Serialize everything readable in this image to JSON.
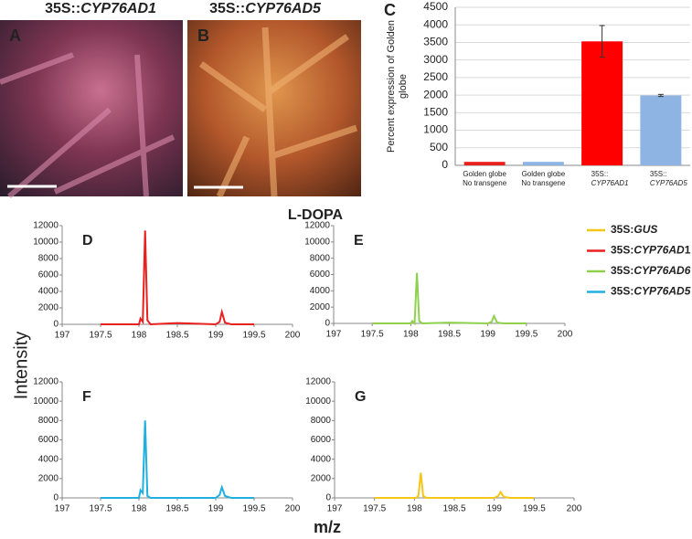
{
  "photos": [
    {
      "label": "A",
      "title": {
        "prefix": "35S::",
        "gene": "CYP76AD1"
      }
    },
    {
      "label": "B",
      "title": {
        "prefix": "35S::",
        "gene": "CYP76AD5"
      }
    }
  ],
  "lines_title": "L-DOPA",
  "y_axis_label": "Intensity",
  "x_axis_label": "m/z",
  "legend": [
    {
      "prefix": "35S:",
      "gene": "GUS",
      "suffix": "",
      "color": "#f5c518"
    },
    {
      "prefix": "35S:",
      "gene": "CYP76AD",
      "suffix": "1",
      "color": "#e8211f"
    },
    {
      "prefix": "35S:",
      "gene": "CYP76AD6",
      "suffix": "",
      "color": "#8fd14f"
    },
    {
      "prefix": "35S:",
      "gene": "CYP76AD5",
      "suffix": "",
      "color": "#1fb0e0"
    }
  ],
  "chart_data": [
    {
      "type": "bar",
      "panel": "C",
      "ylabel": [
        "Percent expression of Golden",
        "globe"
      ],
      "categories": [
        [
          "Golden globe",
          "No transgene"
        ],
        [
          "Golden globe",
          "No transgene"
        ],
        [
          "35S::",
          "CYP76AD1"
        ],
        [
          "35S::",
          "CYP76AD5"
        ]
      ],
      "italic_line": [
        null,
        null,
        1,
        1
      ],
      "values": [
        100,
        100,
        3530,
        1990
      ],
      "errors": [
        null,
        null,
        450,
        30
      ],
      "colors": [
        "#e8211f",
        "#8eb4e3",
        "#ff0000",
        "#8eb4e3"
      ],
      "ylim": [
        0,
        4500
      ],
      "yticks": [
        0,
        500,
        1000,
        1500,
        2000,
        2500,
        3000,
        3500,
        4000,
        4500
      ],
      "grid": true
    },
    {
      "type": "line",
      "panel": "D",
      "x": [
        197.5,
        198.0,
        198.02,
        198.05,
        198.08,
        198.11,
        198.15,
        198.5,
        199.0,
        199.05,
        199.08,
        199.12,
        199.2,
        199.5
      ],
      "series": [
        {
          "color": "#e8211f",
          "values": [
            0,
            0,
            700,
            300,
            11400,
            500,
            0,
            150,
            0,
            300,
            1500,
            200,
            0,
            0
          ]
        }
      ],
      "xlim": [
        197,
        200
      ],
      "xticks": [
        197,
        197.5,
        198,
        198.5,
        199,
        199.5,
        200
      ],
      "ylim": [
        0,
        12000
      ],
      "yticks": [
        0,
        2000,
        4000,
        6000,
        8000,
        10000,
        12000
      ]
    },
    {
      "type": "line",
      "panel": "E",
      "x": [
        197.5,
        198.0,
        198.02,
        198.05,
        198.08,
        198.11,
        198.15,
        198.5,
        199.0,
        199.05,
        199.08,
        199.12,
        199.2,
        199.5
      ],
      "series": [
        {
          "color": "#8fd14f",
          "values": [
            0,
            0,
            300,
            0,
            6200,
            300,
            0,
            100,
            0,
            200,
            900,
            100,
            0,
            0
          ]
        }
      ],
      "xlim": [
        197,
        200
      ],
      "xticks": [
        197,
        197.5,
        198,
        198.5,
        199,
        199.5,
        200
      ],
      "ylim": [
        0,
        12000
      ],
      "yticks": [
        0,
        2000,
        4000,
        6000,
        8000,
        10000,
        12000
      ]
    },
    {
      "type": "line",
      "panel": "F",
      "x": [
        197.5,
        198.0,
        198.02,
        198.05,
        198.08,
        198.11,
        198.15,
        198.5,
        199.0,
        199.05,
        199.08,
        199.12,
        199.2,
        199.5
      ],
      "series": [
        {
          "color": "#1fb0e0",
          "values": [
            0,
            0,
            800,
            500,
            8000,
            200,
            0,
            0,
            0,
            300,
            1100,
            200,
            0,
            0
          ]
        }
      ],
      "xlim": [
        197,
        200
      ],
      "xticks": [
        197,
        197.5,
        198,
        198.5,
        199,
        199.5,
        200
      ],
      "ylim": [
        0,
        12000
      ],
      "yticks": [
        0,
        2000,
        4000,
        6000,
        8000,
        10000,
        12000
      ]
    },
    {
      "type": "line",
      "panel": "G",
      "x": [
        197.5,
        198.0,
        198.02,
        198.05,
        198.08,
        198.11,
        198.15,
        198.5,
        199.0,
        199.05,
        199.08,
        199.12,
        199.2,
        199.5
      ],
      "series": [
        {
          "color": "#f5c518",
          "values": [
            0,
            0,
            0,
            200,
            2600,
            200,
            0,
            0,
            0,
            200,
            600,
            100,
            0,
            0
          ]
        }
      ],
      "xlim": [
        197,
        200
      ],
      "xticks": [
        197,
        197.5,
        198,
        198.5,
        199,
        199.5,
        200
      ],
      "ylim": [
        0,
        12000
      ],
      "yticks": [
        0,
        2000,
        4000,
        6000,
        8000,
        10000,
        12000
      ]
    }
  ]
}
